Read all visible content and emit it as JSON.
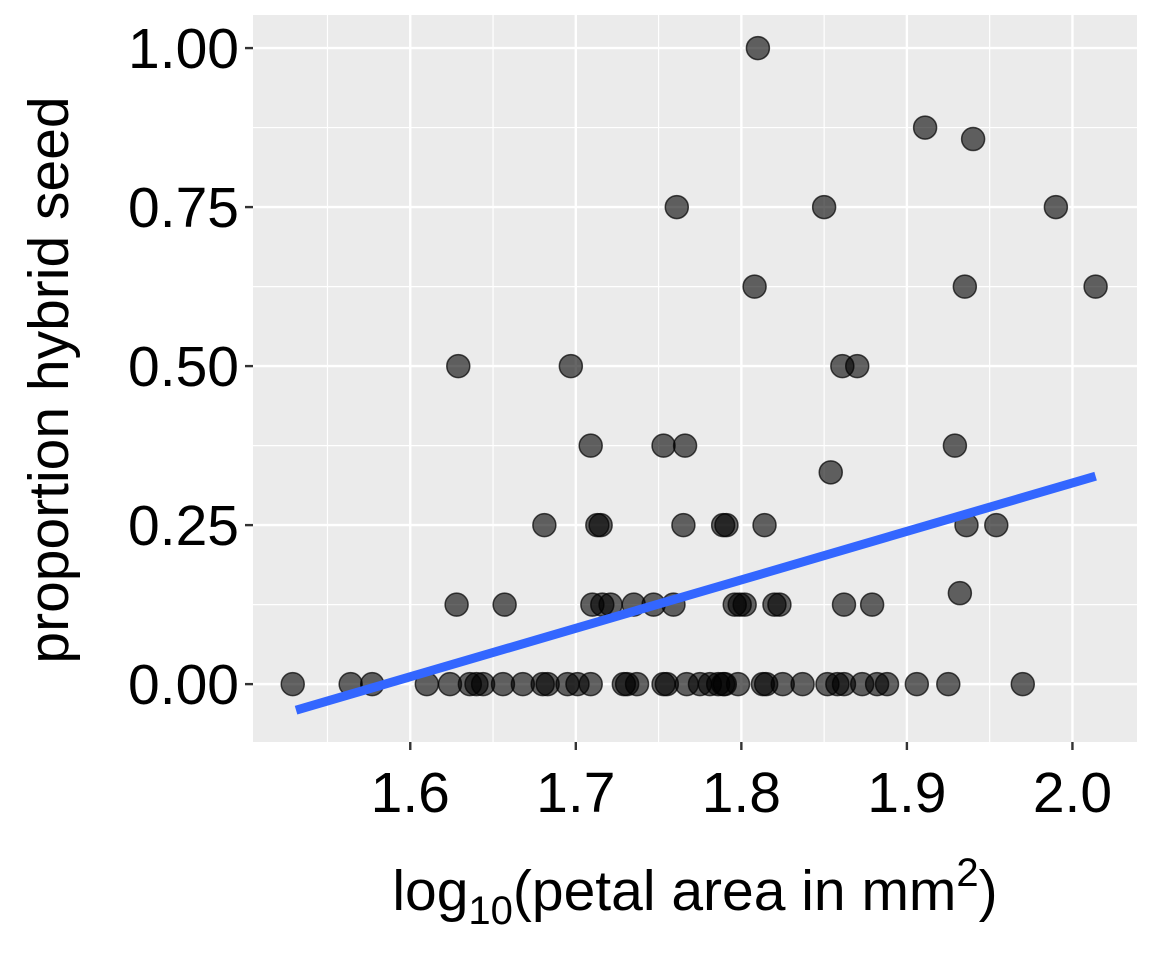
{
  "chart_data": {
    "type": "scatter",
    "title": "",
    "xlabel_parts": [
      "log",
      "10",
      "(petal area in mm",
      "2",
      ")"
    ],
    "ylabel": "proportion hybrid seed",
    "xlim": [
      1.505,
      2.039
    ],
    "ylim": [
      -0.091,
      1.052
    ],
    "x_ticks": [
      1.6,
      1.7,
      1.8,
      1.9,
      2.0
    ],
    "x_tick_labels": [
      "1.6",
      "1.7",
      "1.8",
      "1.9",
      "2.0"
    ],
    "y_ticks": [
      0,
      0.25,
      0.5,
      0.75,
      1.0
    ],
    "y_tick_labels": [
      "0.00",
      "0.25",
      "0.50",
      "0.75",
      "1.00"
    ],
    "grid": true,
    "panel_background": "#EBEBEB",
    "point_color": "#000000",
    "point_alpha": 0.6,
    "trend_line_color": "#3366FF",
    "trend_line": {
      "x": [
        1.531,
        2.014
      ],
      "y": [
        -0.041,
        0.327
      ]
    },
    "points": [
      [
        1.529,
        0
      ],
      [
        1.564,
        0
      ],
      [
        1.577,
        0
      ],
      [
        1.61,
        0
      ],
      [
        1.624,
        0
      ],
      [
        1.636,
        0
      ],
      [
        1.644,
        0
      ],
      [
        1.656,
        0
      ],
      [
        1.668,
        0
      ],
      [
        1.68,
        0
      ],
      [
        1.695,
        0
      ],
      [
        1.701,
        0
      ],
      [
        1.709,
        0
      ],
      [
        1.731,
        0
      ],
      [
        1.737,
        0
      ],
      [
        1.755,
        0
      ],
      [
        1.767,
        0
      ],
      [
        1.775,
        0
      ],
      [
        1.781,
        0
      ],
      [
        1.786,
        0
      ],
      [
        1.789,
        0
      ],
      [
        1.798,
        0
      ],
      [
        1.813,
        0
      ],
      [
        1.825,
        0
      ],
      [
        1.837,
        0
      ],
      [
        1.852,
        0
      ],
      [
        1.858,
        0
      ],
      [
        1.862,
        0
      ],
      [
        1.873,
        0
      ],
      [
        1.882,
        0
      ],
      [
        1.888,
        0
      ],
      [
        1.906,
        0
      ],
      [
        1.925,
        0
      ],
      [
        1.97,
        0
      ],
      [
        1.753,
        0
      ],
      [
        1.79,
        0
      ],
      [
        1.815,
        0
      ],
      [
        1.729,
        0
      ],
      [
        1.683,
        0
      ],
      [
        1.64,
        0
      ],
      [
        1.628,
        0.125
      ],
      [
        1.657,
        0.125
      ],
      [
        1.71,
        0.125
      ],
      [
        1.721,
        0.125
      ],
      [
        1.716,
        0.125
      ],
      [
        1.735,
        0.125
      ],
      [
        1.747,
        0.125
      ],
      [
        1.759,
        0.125
      ],
      [
        1.796,
        0.125
      ],
      [
        1.802,
        0.125
      ],
      [
        1.799,
        0.125
      ],
      [
        1.82,
        0.125
      ],
      [
        1.823,
        0.125
      ],
      [
        1.862,
        0.125
      ],
      [
        1.879,
        0.125
      ],
      [
        1.932,
        0.143
      ],
      [
        1.681,
        0.25
      ],
      [
        1.713,
        0.25
      ],
      [
        1.715,
        0.25
      ],
      [
        1.765,
        0.25
      ],
      [
        1.789,
        0.25
      ],
      [
        1.791,
        0.25
      ],
      [
        1.814,
        0.25
      ],
      [
        1.936,
        0.25
      ],
      [
        1.954,
        0.25
      ],
      [
        1.854,
        0.333
      ],
      [
        1.709,
        0.375
      ],
      [
        1.753,
        0.375
      ],
      [
        1.766,
        0.375
      ],
      [
        1.929,
        0.375
      ],
      [
        1.629,
        0.5
      ],
      [
        1.697,
        0.5
      ],
      [
        1.861,
        0.5
      ],
      [
        1.87,
        0.5
      ],
      [
        1.808,
        0.625
      ],
      [
        1.935,
        0.625
      ],
      [
        2.014,
        0.625
      ],
      [
        1.761,
        0.75
      ],
      [
        1.85,
        0.75
      ],
      [
        1.99,
        0.75
      ],
      [
        1.94,
        0.857
      ],
      [
        1.911,
        0.875
      ],
      [
        1.81,
        1.0
      ]
    ]
  }
}
